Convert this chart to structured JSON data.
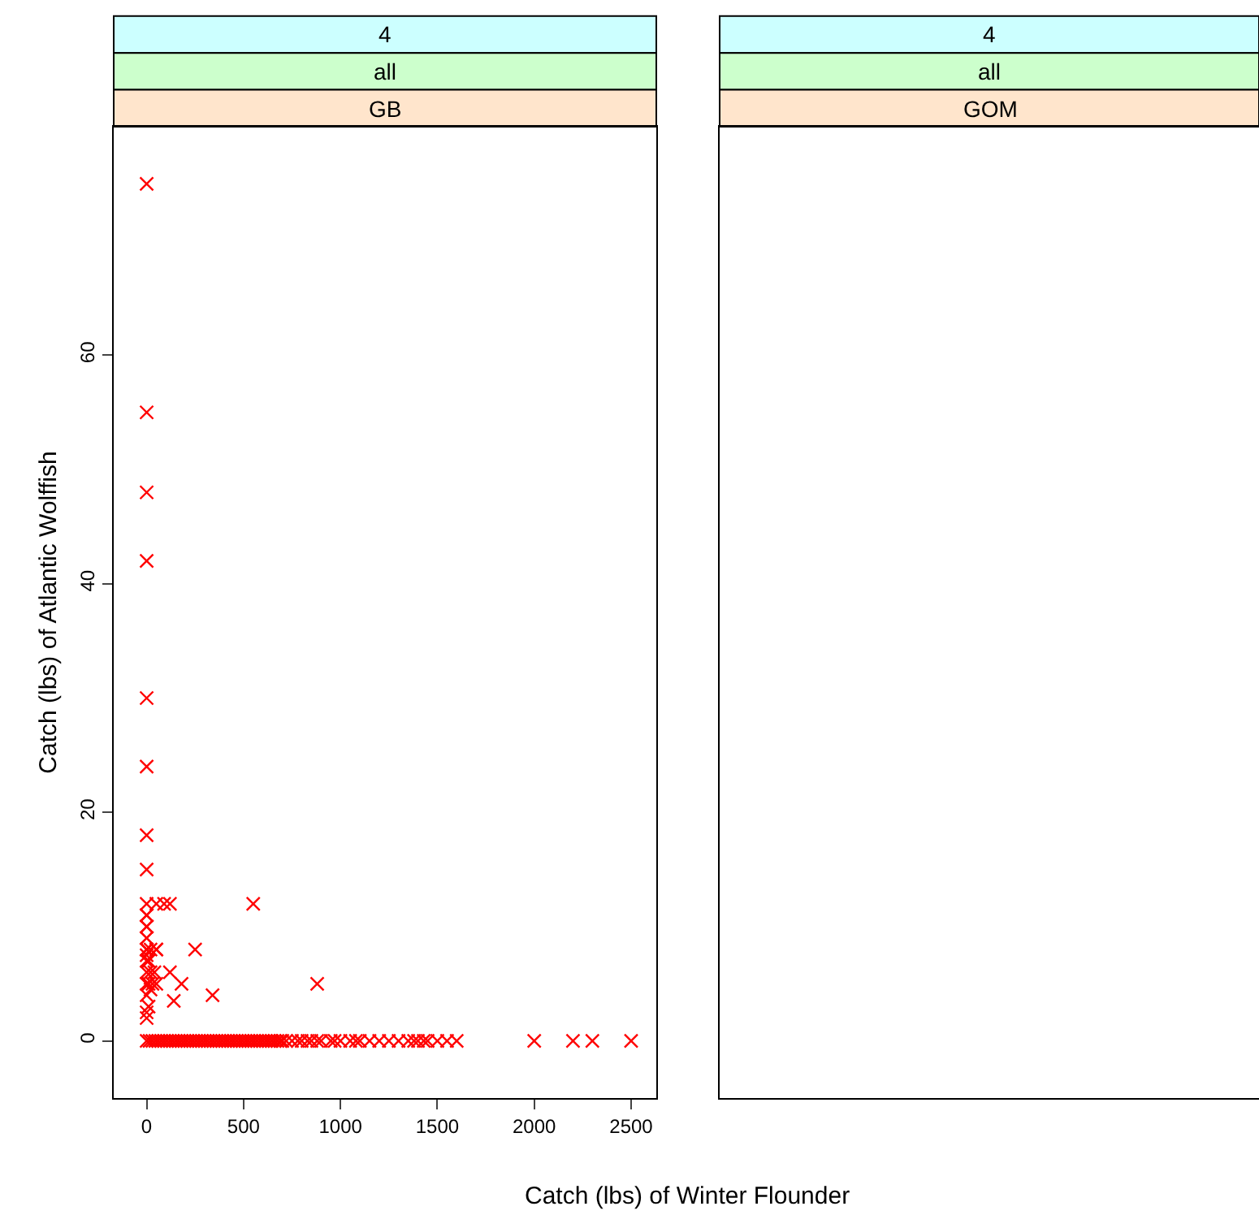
{
  "chart_data": [
    {
      "type": "scatter",
      "annotations": [
        "4",
        "all",
        "GB"
      ],
      "xlabel": "Catch (lbs) of Winter Flounder",
      "ylabel": "Catch (lbs) of Atlantic Wolffish",
      "marker": "cross",
      "xlim": [
        -170,
        2630
      ],
      "ylim": [
        -5,
        80
      ],
      "xticks": [
        0,
        500,
        1000,
        1500,
        2000,
        2500
      ],
      "yticks": [
        0,
        20,
        40,
        60
      ],
      "series": [
        {
          "color": "#ff0000",
          "x": [
            0,
            0,
            0,
            0,
            0,
            0,
            0,
            0,
            0,
            0,
            50,
            90,
            120,
            550,
            0,
            0,
            0,
            0,
            250,
            50,
            880,
            340,
            140,
            180,
            120,
            0,
            0,
            10,
            0,
            20,
            0,
            10,
            30,
            50,
            0,
            20,
            40,
            0,
            10,
            0,
            0,
            20,
            50,
            0,
            0,
            0,
            0,
            15,
            30,
            45,
            60,
            75,
            90,
            105,
            120,
            135,
            150,
            165,
            180,
            195,
            210,
            225,
            240,
            255,
            270,
            285,
            300,
            315,
            330,
            345,
            360,
            375,
            390,
            405,
            420,
            435,
            450,
            465,
            480,
            495,
            510,
            525,
            540,
            555,
            570,
            585,
            600,
            615,
            630,
            645,
            660,
            675,
            690,
            700,
            720,
            750,
            780,
            800,
            830,
            850,
            880,
            900,
            950,
            970,
            1000,
            1050,
            1080,
            1100,
            1150,
            1200,
            1250,
            1300,
            1350,
            1380,
            1400,
            1430,
            1450,
            1500,
            1550,
            1600,
            2000,
            2200,
            2300,
            2500
          ],
          "values": [
            75,
            55,
            48,
            42,
            30,
            24,
            18,
            15,
            12,
            11,
            12,
            12,
            12,
            12,
            10,
            9,
            8,
            8,
            8,
            8,
            5,
            4,
            3.5,
            5,
            6,
            2,
            2.5,
            3,
            4,
            4.5,
            5,
            5,
            5,
            5,
            6,
            6,
            6,
            7,
            7,
            7.5,
            8,
            8,
            8,
            9,
            10,
            11,
            0,
            0,
            0,
            0,
            0,
            0,
            0,
            0,
            0,
            0,
            0,
            0,
            0,
            0,
            0,
            0,
            0,
            0,
            0,
            0,
            0,
            0,
            0,
            0,
            0,
            0,
            0,
            0,
            0,
            0,
            0,
            0,
            0,
            0,
            0,
            0,
            0,
            0,
            0,
            0,
            0,
            0,
            0,
            0,
            0,
            0,
            0,
            0,
            0,
            0,
            0,
            0,
            0,
            0,
            0,
            0,
            0,
            0,
            0,
            0,
            0,
            0,
            0,
            0,
            0,
            0,
            0,
            0,
            0,
            0,
            0,
            0,
            0,
            0,
            0,
            0,
            0,
            0
          ]
        }
      ]
    },
    {
      "type": "scatter",
      "annotations": [
        "4",
        "all",
        "GOM"
      ],
      "tick_labels": false,
      "xlim": [
        -170,
        2630
      ],
      "ylim": [
        -5,
        80
      ],
      "xticks": [
        0,
        500,
        1000,
        1500,
        2000,
        2500
      ],
      "yticks": [
        0,
        20,
        40,
        60
      ]
    }
  ]
}
